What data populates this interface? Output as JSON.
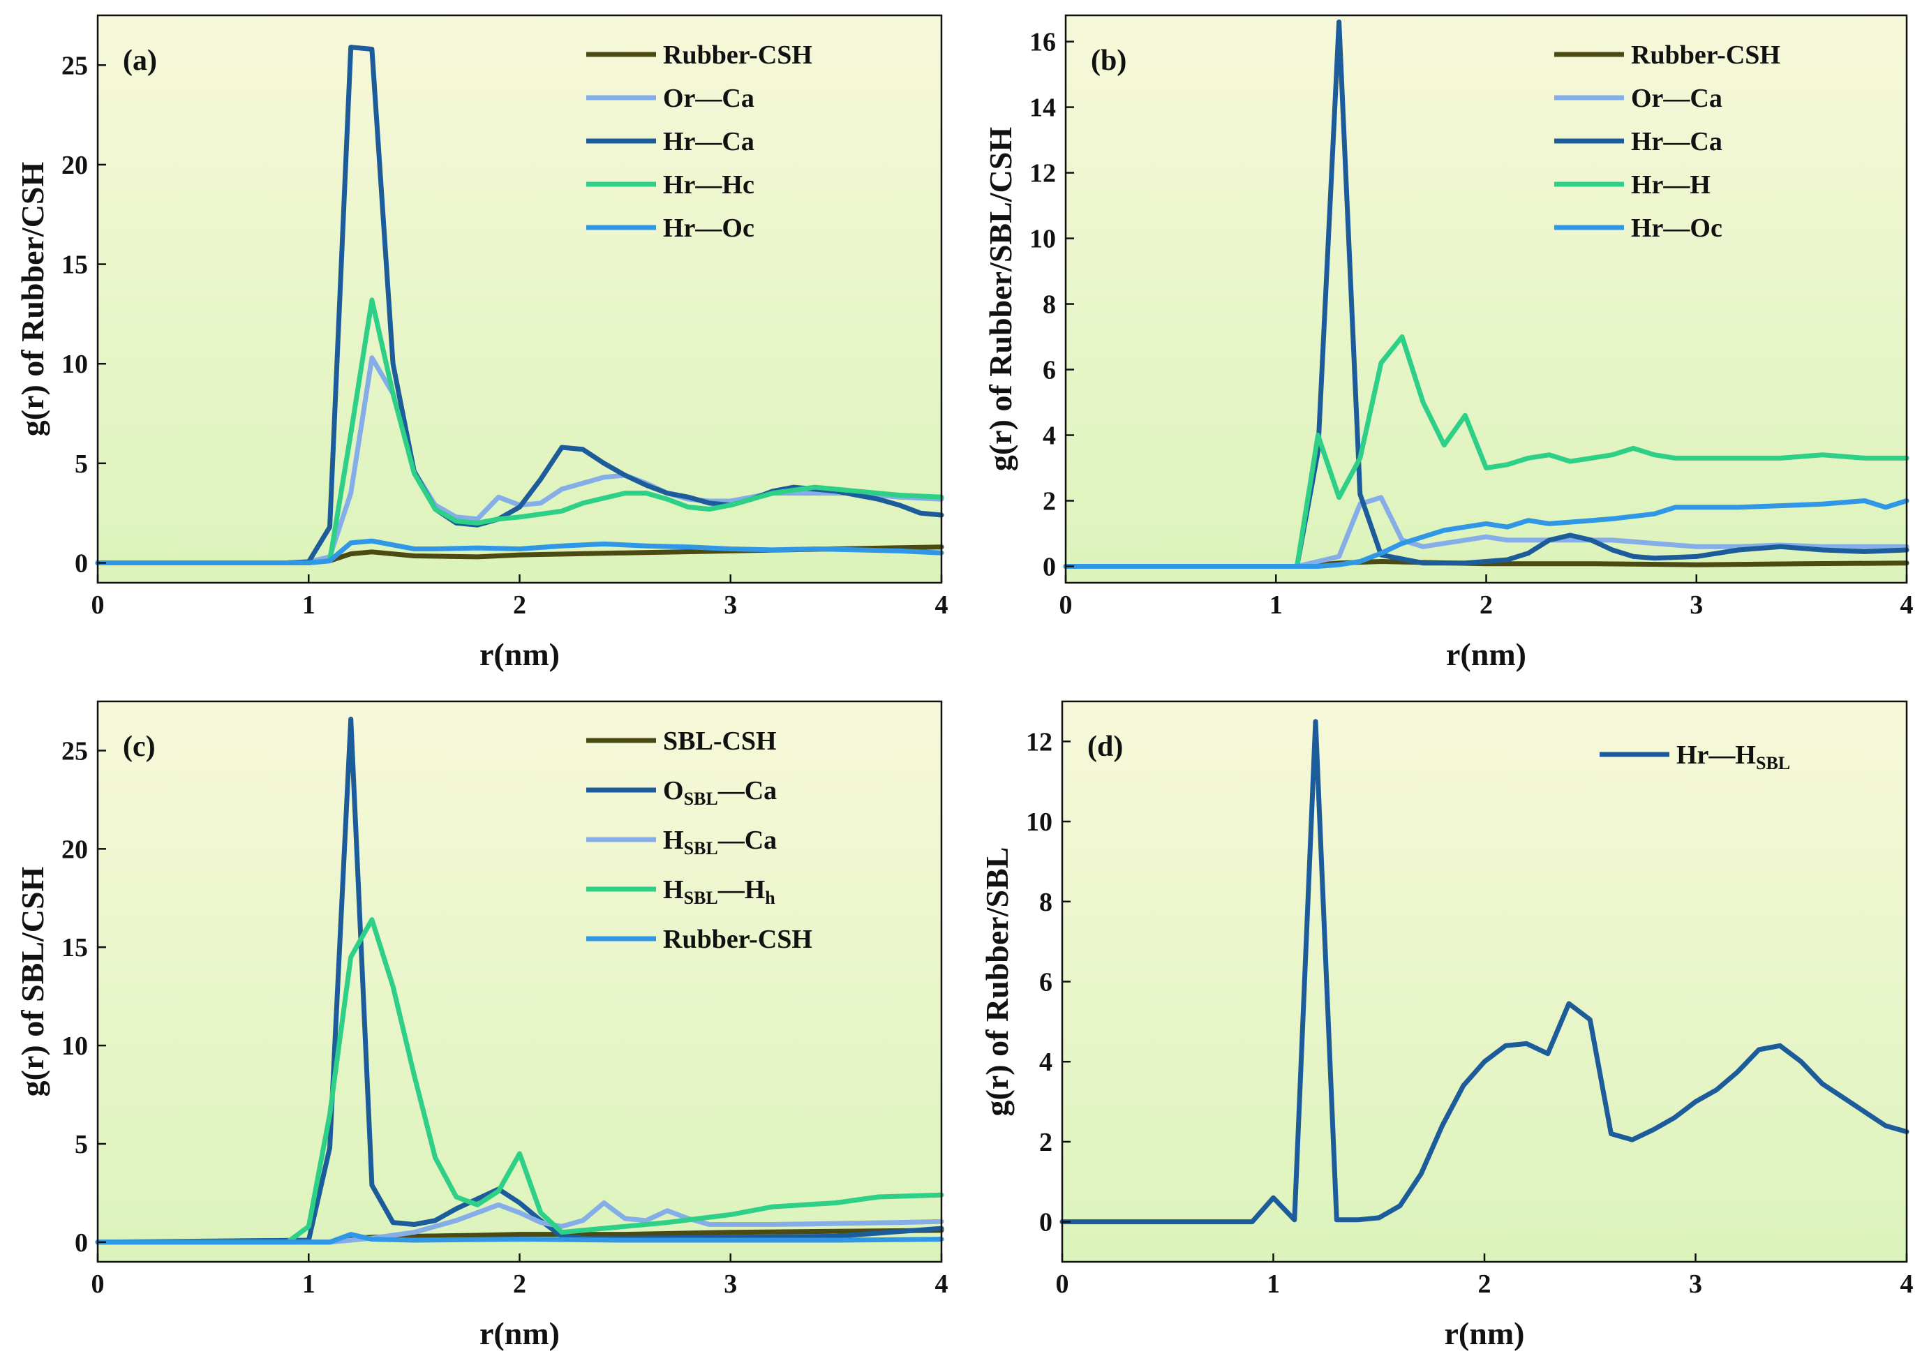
{
  "figure": {
    "background": "#ffffff"
  },
  "chart_data": [
    {
      "type": "line",
      "panel_label": "(a)",
      "xlabel": "r(nm)",
      "ylabel": "g(r) of Rubber/CSH",
      "xlim": [
        0,
        4
      ],
      "ylim": [
        -1,
        27.5
      ],
      "xticks": [
        0,
        1,
        2,
        3,
        4
      ],
      "yticks": [
        0,
        5,
        10,
        15,
        20,
        25
      ],
      "legend_position": "top-right",
      "grid": false,
      "series": [
        {
          "name": "Rubber-CSH",
          "color": "#4a4a12",
          "x": [
            0,
            0.9,
            1.0,
            1.1,
            1.2,
            1.3,
            1.5,
            1.8,
            2.0,
            2.5,
            3.0,
            3.5,
            4.0
          ],
          "y": [
            0,
            0,
            0.05,
            0.1,
            0.45,
            0.55,
            0.35,
            0.3,
            0.4,
            0.5,
            0.6,
            0.7,
            0.8
          ]
        },
        {
          "name": "Or—Ca",
          "color": "#85aee8",
          "x": [
            0,
            0.9,
            1.0,
            1.1,
            1.2,
            1.3,
            1.4,
            1.5,
            1.6,
            1.7,
            1.8,
            1.9,
            2.0,
            2.1,
            2.2,
            2.3,
            2.4,
            2.5,
            2.6,
            2.7,
            2.8,
            2.9,
            3.0,
            3.2,
            3.4,
            3.6,
            3.8,
            4.0
          ],
          "y": [
            0,
            0,
            0.05,
            0.3,
            3.5,
            10.3,
            8.5,
            4.6,
            2.9,
            2.3,
            2.2,
            3.3,
            2.9,
            3.0,
            3.7,
            4.0,
            4.3,
            4.4,
            4.0,
            3.5,
            3.2,
            3.1,
            3.1,
            3.5,
            3.5,
            3.5,
            3.3,
            3.2
          ]
        },
        {
          "name": "Hr—Ca",
          "color": "#1d5c9a",
          "x": [
            0,
            0.9,
            1.0,
            1.1,
            1.2,
            1.3,
            1.4,
            1.5,
            1.6,
            1.7,
            1.8,
            1.9,
            2.0,
            2.1,
            2.2,
            2.3,
            2.4,
            2.5,
            2.6,
            2.7,
            2.8,
            2.9,
            3.0,
            3.1,
            3.2,
            3.3,
            3.4,
            3.5,
            3.6,
            3.7,
            3.8,
            3.9,
            4.0
          ],
          "y": [
            0,
            0,
            0.05,
            1.8,
            25.9,
            25.8,
            10.0,
            4.6,
            2.7,
            2.0,
            1.9,
            2.2,
            2.8,
            4.2,
            5.8,
            5.7,
            5.0,
            4.4,
            3.9,
            3.5,
            3.3,
            3.0,
            2.9,
            3.2,
            3.6,
            3.8,
            3.7,
            3.6,
            3.4,
            3.2,
            2.9,
            2.5,
            2.4
          ]
        },
        {
          "name": "Hr—Hc",
          "color": "#2ecf86",
          "x": [
            0,
            1.0,
            1.1,
            1.2,
            1.3,
            1.4,
            1.5,
            1.6,
            1.7,
            1.8,
            1.9,
            2.0,
            2.2,
            2.3,
            2.5,
            2.6,
            2.7,
            2.8,
            2.9,
            3.0,
            3.2,
            3.4,
            3.6,
            3.8,
            4.0
          ],
          "y": [
            0,
            0,
            0.1,
            6.5,
            13.2,
            8.5,
            4.5,
            2.7,
            2.1,
            2.0,
            2.2,
            2.3,
            2.6,
            3.0,
            3.5,
            3.5,
            3.2,
            2.8,
            2.7,
            2.9,
            3.5,
            3.8,
            3.6,
            3.4,
            3.3
          ]
        },
        {
          "name": "Hr—Oc",
          "color": "#2f97e6",
          "x": [
            0,
            1.0,
            1.1,
            1.2,
            1.3,
            1.4,
            1.5,
            1.6,
            1.8,
            2.0,
            2.2,
            2.4,
            2.6,
            2.8,
            3.0,
            3.2,
            3.4,
            3.6,
            3.8,
            4.0
          ],
          "y": [
            0,
            0,
            0.1,
            1.0,
            1.1,
            0.9,
            0.7,
            0.7,
            0.75,
            0.7,
            0.85,
            0.95,
            0.85,
            0.8,
            0.7,
            0.65,
            0.7,
            0.65,
            0.6,
            0.5
          ]
        }
      ]
    },
    {
      "type": "line",
      "panel_label": "(b)",
      "xlabel": "r(nm)",
      "ylabel": "g(r) of Rubber/SBL/CSH",
      "xlim": [
        0,
        4
      ],
      "ylim": [
        -0.5,
        16.8
      ],
      "xticks": [
        0,
        1,
        2,
        3,
        4
      ],
      "yticks": [
        0,
        2,
        4,
        6,
        8,
        10,
        12,
        14,
        16
      ],
      "legend_position": "top-right",
      "grid": false,
      "series": [
        {
          "name": "Rubber-CSH",
          "color": "#4a4a12",
          "x": [
            0,
            1.1,
            1.2,
            1.3,
            1.5,
            1.7,
            2.0,
            2.5,
            3.0,
            3.5,
            4.0
          ],
          "y": [
            0,
            0,
            0.05,
            0.1,
            0.15,
            0.12,
            0.08,
            0.08,
            0.05,
            0.08,
            0.1
          ]
        },
        {
          "name": "Or—Ca",
          "color": "#85aee8",
          "x": [
            0,
            1.1,
            1.2,
            1.3,
            1.4,
            1.5,
            1.6,
            1.7,
            1.8,
            1.9,
            2.0,
            2.1,
            2.2,
            2.4,
            2.6,
            2.8,
            3.0,
            3.2,
            3.4,
            3.6,
            3.8,
            4.0
          ],
          "y": [
            0,
            0,
            0.15,
            0.3,
            1.9,
            2.1,
            0.8,
            0.6,
            0.7,
            0.8,
            0.9,
            0.8,
            0.8,
            0.8,
            0.8,
            0.7,
            0.6,
            0.6,
            0.65,
            0.6,
            0.6,
            0.6
          ]
        },
        {
          "name": "Hr—Ca",
          "color": "#1d5c9a",
          "x": [
            0,
            1.1,
            1.2,
            1.3,
            1.4,
            1.5,
            1.7,
            1.9,
            2.1,
            2.2,
            2.3,
            2.4,
            2.5,
            2.6,
            2.7,
            2.8,
            3.0,
            3.2,
            3.4,
            3.6,
            3.8,
            4.0
          ],
          "y": [
            0,
            0,
            3.5,
            16.6,
            2.2,
            0.35,
            0.1,
            0.1,
            0.2,
            0.4,
            0.8,
            0.95,
            0.8,
            0.5,
            0.3,
            0.25,
            0.3,
            0.5,
            0.6,
            0.5,
            0.45,
            0.5
          ]
        },
        {
          "name": "Hr—H",
          "color": "#2ecf86",
          "x": [
            0,
            1.1,
            1.2,
            1.3,
            1.4,
            1.5,
            1.6,
            1.7,
            1.8,
            1.9,
            2.0,
            2.1,
            2.2,
            2.3,
            2.4,
            2.5,
            2.6,
            2.7,
            2.8,
            2.9,
            3.0,
            3.2,
            3.4,
            3.6,
            3.8,
            4.0
          ],
          "y": [
            0,
            0,
            4.0,
            2.1,
            3.3,
            6.2,
            7.0,
            5.0,
            3.7,
            4.6,
            3.0,
            3.1,
            3.3,
            3.4,
            3.2,
            3.3,
            3.4,
            3.6,
            3.4,
            3.3,
            3.3,
            3.3,
            3.3,
            3.4,
            3.3,
            3.3
          ]
        },
        {
          "name": "Hr—Oc",
          "color": "#2f97e6",
          "x": [
            0,
            1.2,
            1.3,
            1.4,
            1.5,
            1.6,
            1.7,
            1.8,
            1.9,
            2.0,
            2.1,
            2.2,
            2.3,
            2.4,
            2.6,
            2.8,
            2.9,
            3.0,
            3.2,
            3.4,
            3.6,
            3.8,
            3.9,
            4.0
          ],
          "y": [
            0,
            0,
            0.05,
            0.15,
            0.4,
            0.7,
            0.9,
            1.1,
            1.2,
            1.3,
            1.2,
            1.4,
            1.3,
            1.35,
            1.45,
            1.6,
            1.8,
            1.8,
            1.8,
            1.85,
            1.9,
            2.0,
            1.8,
            2.0
          ]
        }
      ]
    },
    {
      "type": "line",
      "panel_label": "(c)",
      "xlabel": "r(nm)",
      "ylabel": "g(r) of SBL/CSH",
      "xlim": [
        0,
        4
      ],
      "ylim": [
        -1,
        27.5
      ],
      "xticks": [
        0,
        1,
        2,
        3,
        4
      ],
      "yticks": [
        0,
        5,
        10,
        15,
        20,
        25
      ],
      "legend_position": "top-right",
      "grid": false,
      "series": [
        {
          "name": "SBL-CSH",
          "color": "#4a4a12",
          "x": [
            0,
            1.1,
            1.2,
            1.3,
            1.5,
            1.8,
            2.0,
            2.5,
            3.0,
            3.5,
            4.0
          ],
          "y": [
            0,
            0,
            0.2,
            0.25,
            0.3,
            0.35,
            0.4,
            0.4,
            0.5,
            0.55,
            0.6
          ]
        },
        {
          "name": "O_SBL—Ca",
          "color": "#1d5c9a",
          "x": [
            0,
            1.0,
            1.1,
            1.2,
            1.3,
            1.4,
            1.5,
            1.6,
            1.7,
            1.8,
            1.9,
            2.0,
            2.1,
            2.2,
            2.3,
            2.5,
            3.0,
            3.5,
            4.0
          ],
          "y": [
            0,
            0.1,
            4.8,
            26.6,
            2.9,
            1.0,
            0.9,
            1.1,
            1.7,
            2.2,
            2.7,
            2.0,
            1.1,
            0.3,
            0.2,
            0.2,
            0.25,
            0.3,
            0.7
          ]
        },
        {
          "name": "H_SBL—Ca",
          "color": "#85aee8",
          "x": [
            0,
            1.1,
            1.2,
            1.3,
            1.5,
            1.7,
            1.9,
            2.0,
            2.1,
            2.2,
            2.3,
            2.4,
            2.5,
            2.6,
            2.7,
            2.8,
            2.9,
            3.0,
            3.2,
            3.5,
            3.8,
            4.0
          ],
          "y": [
            0,
            0,
            0.1,
            0.2,
            0.5,
            1.1,
            1.9,
            1.5,
            1.0,
            0.8,
            1.1,
            2.0,
            1.2,
            1.1,
            1.6,
            1.2,
            0.9,
            0.9,
            0.9,
            0.95,
            1.0,
            1.05
          ]
        },
        {
          "name": "H_SBL—H_h",
          "color": "#2ecf86",
          "x": [
            0,
            0.9,
            1.0,
            1.1,
            1.2,
            1.3,
            1.4,
            1.5,
            1.6,
            1.7,
            1.8,
            1.9,
            2.0,
            2.1,
            2.2,
            2.3,
            2.5,
            2.7,
            3.0,
            3.2,
            3.5,
            3.7,
            4.0
          ],
          "y": [
            0,
            0,
            0.8,
            6.5,
            14.5,
            16.4,
            13.0,
            8.5,
            4.3,
            2.3,
            1.9,
            2.6,
            4.5,
            1.5,
            0.5,
            0.6,
            0.8,
            1.0,
            1.4,
            1.8,
            2.0,
            2.3,
            2.4
          ]
        },
        {
          "name": "Rubber-CSH",
          "color": "#2f97e6",
          "x": [
            0,
            1.1,
            1.2,
            1.3,
            1.5,
            2.0,
            2.5,
            3.0,
            3.5,
            4.0
          ],
          "y": [
            0,
            0,
            0.4,
            0.15,
            0.1,
            0.15,
            0.1,
            0.1,
            0.1,
            0.15
          ]
        }
      ]
    },
    {
      "type": "line",
      "panel_label": "(d)",
      "xlabel": "r(nm)",
      "ylabel": "g(r) of Rubber/SBL",
      "xlim": [
        0,
        4
      ],
      "ylim": [
        -1,
        13
      ],
      "xticks": [
        0,
        1,
        2,
        3,
        4
      ],
      "yticks": [
        0,
        2,
        4,
        6,
        8,
        10,
        12
      ],
      "legend_position": "top-right",
      "grid": false,
      "series": [
        {
          "name": "Hr—H_SBL",
          "color": "#1d5c9a",
          "x": [
            0,
            0.9,
            1.0,
            1.1,
            1.2,
            1.3,
            1.4,
            1.5,
            1.6,
            1.7,
            1.8,
            1.9,
            2.0,
            2.1,
            2.2,
            2.3,
            2.4,
            2.5,
            2.6,
            2.7,
            2.8,
            2.9,
            3.0,
            3.1,
            3.2,
            3.3,
            3.4,
            3.5,
            3.6,
            3.7,
            3.8,
            3.9,
            4.0
          ],
          "y": [
            0,
            0,
            0.6,
            0.05,
            12.5,
            0.05,
            0.05,
            0.1,
            0.4,
            1.2,
            2.4,
            3.4,
            4.0,
            4.4,
            4.45,
            4.2,
            5.45,
            5.05,
            2.2,
            2.05,
            2.3,
            2.6,
            3.0,
            3.3,
            3.75,
            4.3,
            4.4,
            4.0,
            3.45,
            3.1,
            2.75,
            2.4,
            2.25
          ]
        }
      ]
    }
  ]
}
